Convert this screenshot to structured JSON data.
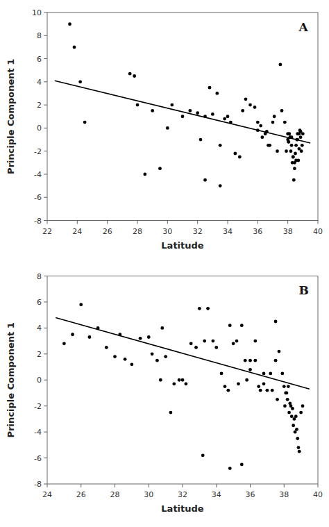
{
  "chart_data": [
    {
      "type": "scatter",
      "annotations": [
        "A"
      ],
      "xlabel": "Latitude",
      "ylabel": "Principle Component 1",
      "xlim": [
        22,
        40
      ],
      "ylim": [
        -8,
        10
      ],
      "xticks": [
        22,
        24,
        26,
        28,
        30,
        32,
        34,
        36,
        38,
        40
      ],
      "yticks": [
        -8,
        -6,
        -4,
        -2,
        0,
        2,
        4,
        6,
        8,
        10
      ],
      "grid": false,
      "series": [
        {
          "type": "scatter",
          "color": "#000000",
          "x": [
            23.5,
            23.8,
            24.2,
            24.5,
            27.5,
            27.8,
            28.0,
            28.5,
            29.0,
            29.5,
            30.0,
            30.3,
            31.0,
            31.5,
            32.0,
            32.2,
            32.5,
            32.8,
            33.0,
            33.3,
            33.5,
            33.8,
            34.0,
            34.2,
            34.5,
            34.8,
            35.0,
            35.2,
            35.5,
            35.8,
            36.0,
            36.2,
            36.5,
            36.7,
            37.0,
            37.3,
            37.5,
            37.8,
            38.0,
            38.05,
            38.1,
            38.15,
            38.2,
            38.25,
            38.3,
            38.35,
            38.4,
            38.45,
            38.5,
            38.55,
            38.6,
            38.65,
            38.7,
            38.75,
            38.8,
            38.85,
            38.9,
            38.95,
            39.0,
            36.0,
            36.3,
            36.6,
            36.8,
            37.1,
            37.6,
            38.0,
            37.9,
            38.05,
            38.15,
            38.25,
            38.35,
            38.45,
            38.55,
            38.65,
            38.75,
            38.85,
            32.5,
            33.5
          ],
          "values": [
            9.0,
            7.0,
            4.0,
            0.5,
            4.7,
            4.5,
            2.0,
            -4.0,
            1.5,
            -3.5,
            0.0,
            2.0,
            1.0,
            1.5,
            1.3,
            -1.0,
            1.0,
            3.5,
            1.2,
            3.0,
            -5.0,
            0.8,
            1.0,
            0.5,
            -2.2,
            -2.5,
            1.5,
            2.5,
            2.0,
            1.8,
            0.5,
            0.2,
            -0.5,
            -1.5,
            0.5,
            -2.0,
            5.5,
            0.5,
            -0.5,
            -1.2,
            -0.5,
            -0.8,
            -2.0,
            -0.8,
            -3.0,
            -2.5,
            -4.5,
            -3.5,
            -2.2,
            -1.5,
            -1.0,
            -0.5,
            -2.8,
            -1.8,
            -0.2,
            -0.8,
            -2.0,
            -1.5,
            -0.5,
            -0.2,
            -0.8,
            -0.3,
            -1.5,
            1.0,
            1.5,
            -1.0,
            -2.0,
            -1.2,
            -0.8,
            -1.5,
            -2.5,
            -3.0,
            -2.8,
            -1.0,
            -0.5,
            -0.3,
            -4.5,
            -1.5
          ]
        },
        {
          "type": "line",
          "color": "#000000",
          "x": [
            22.5,
            39.5
          ],
          "values": [
            4.1,
            -1.3
          ]
        }
      ]
    },
    {
      "type": "scatter",
      "annotations": [
        "B"
      ],
      "xlabel": "Latitude",
      "ylabel": "Principle Component 1",
      "xlim": [
        24,
        40
      ],
      "ylim": [
        -8,
        8
      ],
      "xticks": [
        24,
        26,
        28,
        30,
        32,
        34,
        36,
        38,
        40
      ],
      "yticks": [
        -8,
        -6,
        -4,
        -2,
        0,
        2,
        4,
        6,
        8
      ],
      "grid": false,
      "series": [
        {
          "type": "scatter",
          "color": "#000000",
          "x": [
            25.0,
            25.5,
            26.0,
            26.5,
            27.0,
            27.5,
            28.0,
            28.3,
            28.6,
            29.0,
            29.5,
            30.0,
            30.2,
            30.5,
            30.8,
            31.0,
            31.5,
            31.8,
            32.0,
            32.2,
            32.5,
            32.8,
            33.0,
            33.3,
            33.5,
            33.8,
            34.0,
            34.3,
            34.5,
            34.8,
            35.0,
            35.2,
            35.5,
            35.7,
            35.8,
            36.0,
            36.3,
            36.5,
            36.8,
            37.0,
            37.2,
            37.5,
            37.7,
            37.9,
            38.0,
            38.1,
            38.2,
            38.3,
            38.4,
            38.5,
            38.6,
            38.7,
            38.8,
            38.9,
            39.0,
            39.1,
            35.5,
            33.2,
            31.3,
            30.7,
            34.7,
            36.3,
            36.8,
            37.3,
            37.5,
            38.05,
            38.15,
            38.25,
            38.35,
            38.45,
            38.55,
            38.65,
            38.75,
            37.6,
            38.85,
            36.6,
            35.3,
            36.0,
            34.8
          ],
          "values": [
            2.8,
            3.5,
            5.8,
            3.3,
            4.0,
            2.5,
            1.8,
            3.5,
            1.6,
            1.2,
            3.2,
            3.3,
            2.0,
            1.5,
            4.0,
            1.8,
            -0.3,
            0.0,
            0.0,
            -0.3,
            2.8,
            2.5,
            5.5,
            3.0,
            5.5,
            3.0,
            2.5,
            0.5,
            -0.5,
            4.2,
            2.8,
            3.0,
            4.2,
            1.5,
            0.0,
            1.5,
            3.0,
            -0.5,
            -0.3,
            -0.8,
            0.5,
            4.5,
            2.2,
            0.5,
            -0.5,
            -1.0,
            -1.5,
            -2.5,
            -2.0,
            -2.2,
            -3.0,
            -2.8,
            -4.5,
            -5.5,
            -2.5,
            -2.0,
            -6.5,
            -5.8,
            -2.5,
            0.0,
            -0.8,
            1.5,
            0.5,
            -0.8,
            1.5,
            -2.0,
            -1.0,
            -0.5,
            -1.8,
            -2.8,
            -3.5,
            -4.0,
            -3.8,
            -1.5,
            -5.2,
            -0.8,
            -0.3,
            0.8,
            -6.8
          ]
        },
        {
          "type": "line",
          "color": "#000000",
          "x": [
            24.5,
            39.5
          ],
          "values": [
            4.8,
            -0.7
          ]
        }
      ]
    }
  ]
}
